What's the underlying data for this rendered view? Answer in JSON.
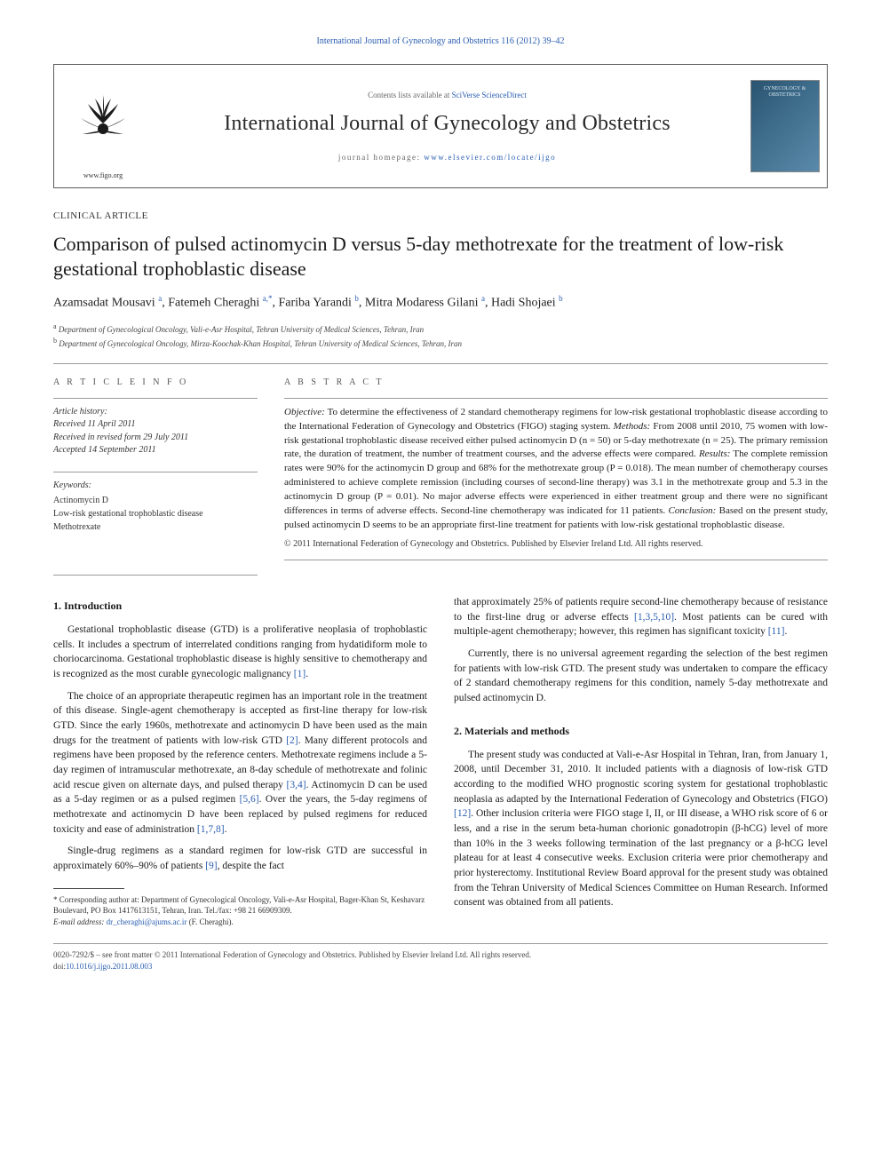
{
  "journal_ref_prefix": "International Journal of Gynecology and Obstetrics 116 (2012) 39–42",
  "header": {
    "contents_prefix": "Contents lists available at ",
    "contents_link": "SciVerse ScienceDirect",
    "journal_name": "International Journal of Gynecology and Obstetrics",
    "homepage_prefix": "journal homepage: ",
    "homepage_url": "www.elsevier.com/locate/ijgo",
    "logo_url": "www.figo.org",
    "cover_title": "GYNECOLOGY & OBSTETRICS"
  },
  "article_type": "CLINICAL ARTICLE",
  "title": "Comparison of pulsed actinomycin D versus 5-day methotrexate for the treatment of low-risk gestational trophoblastic disease",
  "authors_html": "Azamsadat Mousavi <span class='sup'>a</span>, Fatemeh Cheraghi <span class='sup'>a,</span><span class='sup'>*</span>, Fariba Yarandi <span class='sup'>b</span>, Mitra Modaress Gilani <span class='sup'>a</span>, Hadi Shojaei <span class='sup'>b</span>",
  "affiliations": [
    {
      "sup": "a",
      "text": "Department of Gynecological Oncology, Vali-e-Asr Hospital, Tehran University of Medical Sciences, Tehran, Iran"
    },
    {
      "sup": "b",
      "text": "Department of Gynecological Oncology, Mirza-Koochak-Khan Hospital, Tehran University of Medical Sciences, Tehran, Iran"
    }
  ],
  "info": {
    "label": "A R T I C L E   I N F O",
    "history_head": "Article history:",
    "received": "Received 11 April 2011",
    "revised": "Received in revised form 29 July 2011",
    "accepted": "Accepted 14 September 2011",
    "keywords_head": "Keywords:",
    "keywords": [
      "Actinomycin D",
      "Low-risk gestational trophoblastic disease",
      "Methotrexate"
    ]
  },
  "abstract": {
    "label": "A B S T R A C T",
    "objective_label": "Objective:",
    "objective": "To determine the effectiveness of 2 standard chemotherapy regimens for low-risk gestational trophoblastic disease according to the International Federation of Gynecology and Obstetrics (FIGO) staging system.",
    "methods_label": "Methods:",
    "methods": "From 2008 until 2010, 75 women with low-risk gestational trophoblastic disease received either pulsed actinomycin D (n = 50) or 5-day methotrexate (n = 25). The primary remission rate, the duration of treatment, the number of treatment courses, and the adverse effects were compared.",
    "results_label": "Results:",
    "results": "The complete remission rates were 90% for the actinomycin D group and 68% for the methotrexate group (P = 0.018). The mean number of chemotherapy courses administered to achieve complete remission (including courses of second-line therapy) was 3.1 in the methotrexate group and 5.3 in the actinomycin D group (P = 0.01). No major adverse effects were experienced in either treatment group and there were no significant differences in terms of adverse effects. Second-line chemotherapy was indicated for 11 patients.",
    "conclusion_label": "Conclusion:",
    "conclusion": "Based on the present study, pulsed actinomycin D seems to be an appropriate first-line treatment for patients with low-risk gestational trophoblastic disease.",
    "copyright": "© 2011 International Federation of Gynecology and Obstetrics. Published by Elsevier Ireland Ltd. All rights reserved."
  },
  "sections": {
    "intro_head": "1. Introduction",
    "intro_p1": "Gestational trophoblastic disease (GTD) is a proliferative neoplasia of trophoblastic cells. It includes a spectrum of interrelated conditions ranging from hydatidiform mole to choriocarcinoma. Gestational trophoblastic disease is highly sensitive to chemotherapy and is recognized as the most curable gynecologic malignancy ",
    "intro_p1_ref": "[1]",
    "intro_p1_end": ".",
    "intro_p2": "The choice of an appropriate therapeutic regimen has an important role in the treatment of this disease. Single-agent chemotherapy is accepted as first-line therapy for low-risk GTD. Since the early 1960s, methotrexate and actinomycin D have been used as the main drugs for the treatment of patients with low-risk GTD ",
    "intro_p2_ref1": "[2]",
    "intro_p2_mid": ". Many different protocols and regimens have been proposed by the reference centers. Methotrexate regimens include a 5-day regimen of intramuscular methotrexate, an 8-day schedule of methotrexate and folinic acid rescue given on alternate days, and pulsed therapy ",
    "intro_p2_ref2": "[3,4]",
    "intro_p2_mid2": ". Actinomycin D can be used as a 5-day regimen or as a pulsed regimen ",
    "intro_p2_ref3": "[5,6]",
    "intro_p2_mid3": ". Over the years, the 5-day regimens of methotrexate and actinomycin D have been replaced by pulsed regimens for reduced toxicity and ease of administration ",
    "intro_p2_ref4": "[1,7,8]",
    "intro_p2_end": ".",
    "intro_p3": "Single-drug regimens as a standard regimen for low-risk GTD are successful in approximately 60%–90% of patients ",
    "intro_p3_ref": "[9]",
    "intro_p3_end": ", despite the fact",
    "col2_p1": "that approximately 25% of patients require second-line chemotherapy because of resistance to the first-line drug or adverse effects ",
    "col2_p1_ref1": "[1,3,5,10]",
    "col2_p1_mid": ". Most patients can be cured with multiple-agent chemotherapy; however, this regimen has significant toxicity ",
    "col2_p1_ref2": "[11]",
    "col2_p1_end": ".",
    "col2_p2": "Currently, there is no universal agreement regarding the selection of the best regimen for patients with low-risk GTD. The present study was undertaken to compare the efficacy of 2 standard chemotherapy regimens for this condition, namely 5-day methotrexate and pulsed actinomycin D.",
    "methods_head": "2. Materials and methods",
    "methods_p1a": "The present study was conducted at Vali-e-Asr Hospital in Tehran, Iran, from January 1, 2008, until December 31, 2010. It included patients with a diagnosis of low-risk GTD according to the modified WHO prognostic scoring system for gestational trophoblastic neoplasia as adapted by the International Federation of Gynecology and Obstetrics (FIGO) ",
    "methods_p1_ref": "[12]",
    "methods_p1b": ". Other inclusion criteria were FIGO stage I, II, or III disease, a WHO risk score of 6 or less, and a rise in the serum beta-human chorionic gonadotropin (β-hCG) level of more than 10% in the 3 weeks following termination of the last pregnancy or a β-hCG level plateau for at least 4 consecutive weeks. Exclusion criteria were prior chemotherapy and prior hysterectomy. Institutional Review Board approval for the present study was obtained from the Tehran University of Medical Sciences Committee on Human Research. Informed consent was obtained from all patients."
  },
  "footnote": {
    "corr_label": "* Corresponding author at: ",
    "corr_text": "Department of Gynecological Oncology, Vali-e-Asr Hospital, Bager-Khan St, Keshavarz Boulevard, PO Box 1417613151, Tehran, Iran. Tel./fax: +98 21 66909309.",
    "email_label": "E-mail address: ",
    "email": "dr_cheraghi@ajums.ac.ir",
    "email_suffix": " (F. Cheraghi)."
  },
  "footer": {
    "line1": "0020-7292/$ – see front matter © 2011 International Federation of Gynecology and Obstetrics. Published by Elsevier Ireland Ltd. All rights reserved.",
    "doi_label": "doi:",
    "doi": "10.1016/j.ijgo.2011.08.003"
  },
  "colors": {
    "link": "#2a5db0",
    "text": "#1a1a1a",
    "border": "#5a5a5a",
    "cover_grad_a": "#2a5470",
    "cover_grad_b": "#5a8aaa"
  },
  "typography": {
    "title_fontsize": 22,
    "journal_fontsize": 24,
    "body_fontsize": 11.5,
    "abstract_fontsize": 11,
    "small_fontsize": 9
  }
}
